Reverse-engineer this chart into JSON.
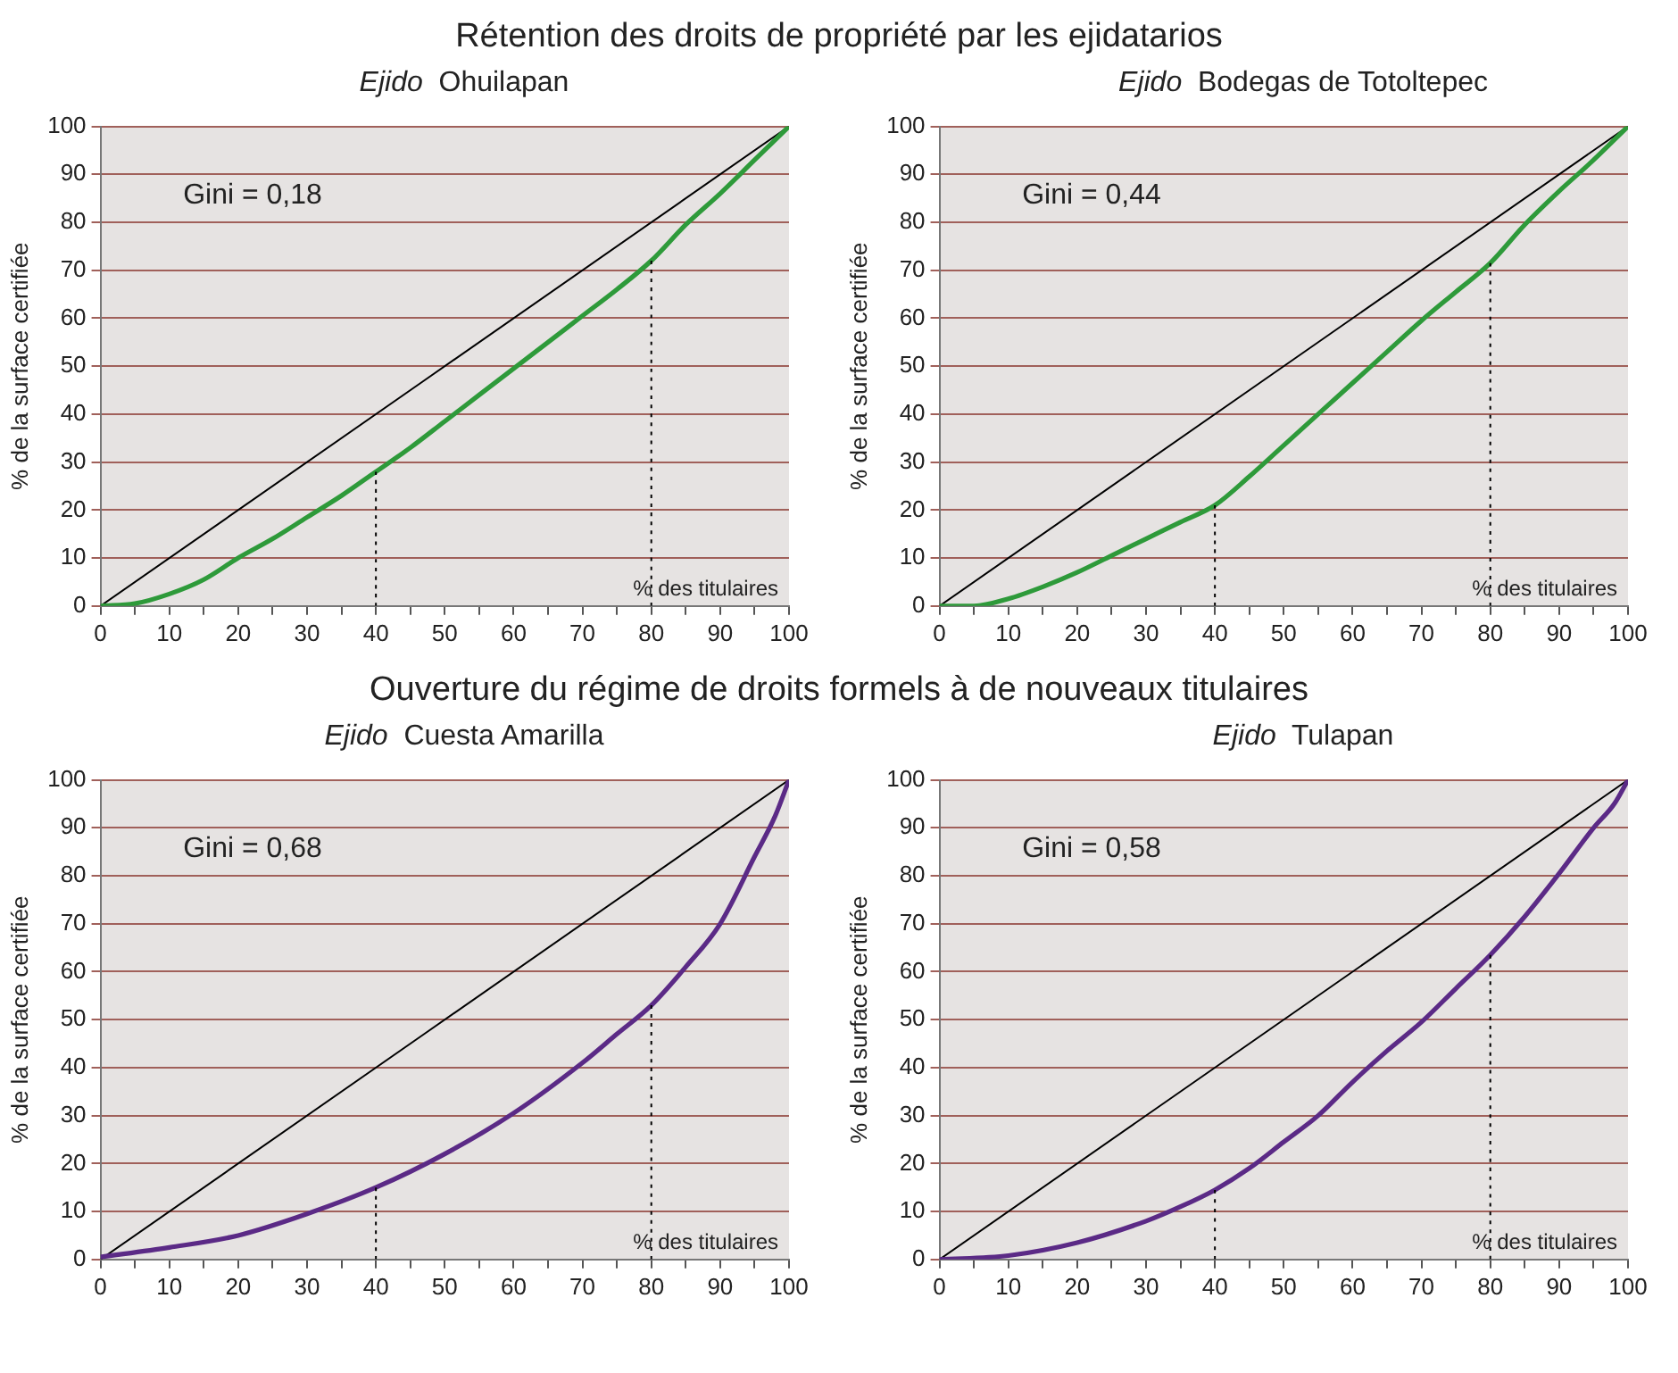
{
  "chart_data": [
    {
      "type": "line",
      "title": "Rétention des droits de propriété par les ejidatarios",
      "subtitle": "Ejido Ohuilapan",
      "xlabel": "% des titulaires",
      "ylabel": "% de la surface certifiée",
      "annotations": [
        "Gini = 0,18"
      ],
      "xlim": [
        0,
        100
      ],
      "ylim": [
        0,
        100
      ],
      "xticks": [
        0,
        {
          "value": 5,
          "label": null
        },
        10,
        {
          "value": 15,
          "label": null
        },
        20,
        {
          "value": 25,
          "label": null
        },
        30,
        {
          "value": 35,
          "label": null
        },
        40,
        {
          "value": 45,
          "label": null
        },
        50,
        {
          "value": 55,
          "label": null
        },
        60,
        {
          "value": 65,
          "label": null
        },
        70,
        {
          "value": 75,
          "label": null
        },
        80,
        {
          "value": 85,
          "label": null
        },
        90,
        {
          "value": 95,
          "label": null
        },
        100
      ],
      "yticks": [
        0,
        10,
        20,
        30,
        40,
        50,
        60,
        70,
        80,
        90,
        100
      ],
      "grid": "y",
      "marker": "none",
      "series": [
        {
          "color": "#000000",
          "x": [
            0,
            100
          ],
          "values": [
            0,
            100
          ]
        },
        {
          "color": "#2e9a3a",
          "x": [
            0,
            5,
            10,
            15,
            20,
            25,
            30,
            35,
            40,
            45,
            50,
            55,
            60,
            65,
            70,
            75,
            80,
            85,
            90,
            95,
            100
          ],
          "values": [
            0,
            0.5,
            2.5,
            5.5,
            10,
            14,
            18.5,
            23,
            28,
            33,
            38.5,
            44,
            49.5,
            55,
            60.5,
            66,
            72,
            79.5,
            86,
            93,
            100
          ]
        },
        {
          "color": "#000000",
          "line_style": "dotted",
          "x": [
            40,
            40
          ],
          "values": [
            0,
            28
          ]
        },
        {
          "color": "#000000",
          "line_style": "dotted",
          "x": [
            80,
            80
          ],
          "values": [
            0,
            72
          ]
        }
      ]
    },
    {
      "type": "line",
      "subtitle": "Ejido Bodegas de Totoltepec",
      "xlabel": "% des titulaires",
      "ylabel": "% de la surface certifiée",
      "annotations": [
        "Gini = 0,44"
      ],
      "xlim": [
        0,
        100
      ],
      "ylim": [
        0,
        100
      ],
      "xticks": [
        0,
        {
          "value": 5,
          "label": null
        },
        10,
        {
          "value": 15,
          "label": null
        },
        20,
        {
          "value": 25,
          "label": null
        },
        30,
        {
          "value": 35,
          "label": null
        },
        40,
        {
          "value": 45,
          "label": null
        },
        50,
        {
          "value": 55,
          "label": null
        },
        60,
        {
          "value": 65,
          "label": null
        },
        70,
        {
          "value": 75,
          "label": null
        },
        80,
        {
          "value": 85,
          "label": null
        },
        90,
        {
          "value": 95,
          "label": null
        },
        100
      ],
      "yticks": [
        0,
        10,
        20,
        30,
        40,
        50,
        60,
        70,
        80,
        90,
        100
      ],
      "grid": "y",
      "marker": "none",
      "series": [
        {
          "color": "#000000",
          "x": [
            0,
            100
          ],
          "values": [
            0,
            100
          ]
        },
        {
          "color": "#2e9a3a",
          "x": [
            0,
            5,
            10,
            15,
            20,
            25,
            30,
            35,
            40,
            45,
            50,
            55,
            60,
            65,
            70,
            75,
            80,
            85,
            90,
            95,
            100
          ],
          "values": [
            0,
            0,
            1.5,
            4,
            7,
            10.5,
            14,
            17.5,
            21,
            27,
            33.5,
            40,
            46.5,
            53,
            59.5,
            65.5,
            71.5,
            79.5,
            86.5,
            93,
            100
          ]
        },
        {
          "color": "#000000",
          "line_style": "dotted",
          "x": [
            40,
            40
          ],
          "values": [
            0,
            21
          ]
        },
        {
          "color": "#000000",
          "line_style": "dotted",
          "x": [
            80,
            80
          ],
          "values": [
            0,
            71.5
          ]
        }
      ]
    },
    {
      "type": "line",
      "title": "Ouverture du régime de droits formels à de nouveaux titulaires",
      "subtitle": "Ejido Cuesta Amarilla",
      "xlabel": "% des titulaires",
      "ylabel": "% de la surface certifiée",
      "annotations": [
        "Gini = 0,68"
      ],
      "xlim": [
        0,
        100
      ],
      "ylim": [
        0,
        100
      ],
      "xticks": [
        0,
        {
          "value": 5,
          "label": null
        },
        10,
        {
          "value": 15,
          "label": null
        },
        20,
        {
          "value": 25,
          "label": null
        },
        30,
        {
          "value": 35,
          "label": null
        },
        40,
        {
          "value": 45,
          "label": null
        },
        50,
        {
          "value": 55,
          "label": null
        },
        60,
        {
          "value": 65,
          "label": null
        },
        70,
        {
          "value": 75,
          "label": null
        },
        80,
        {
          "value": 85,
          "label": null
        },
        90,
        {
          "value": 95,
          "label": null
        },
        100
      ],
      "yticks": [
        0,
        10,
        20,
        30,
        40,
        50,
        60,
        70,
        80,
        90,
        100
      ],
      "grid": "y",
      "marker": "none",
      "series": [
        {
          "color": "#000000",
          "x": [
            0,
            100
          ],
          "values": [
            0,
            100
          ]
        },
        {
          "color": "#5b2a86",
          "x": [
            0,
            10,
            20,
            30,
            40,
            50,
            60,
            70,
            75,
            80,
            85,
            90,
            95,
            98,
            100
          ],
          "values": [
            0.5,
            2.5,
            5,
            9.5,
            15,
            22,
            30.5,
            41,
            47,
            53,
            61,
            70,
            84,
            92.5,
            100
          ]
        },
        {
          "color": "#000000",
          "line_style": "dotted",
          "x": [
            40,
            40
          ],
          "values": [
            0,
            15
          ]
        },
        {
          "color": "#000000",
          "line_style": "dotted",
          "x": [
            80,
            80
          ],
          "values": [
            0,
            53
          ]
        }
      ]
    },
    {
      "type": "line",
      "subtitle": "Ejido Tulapan",
      "xlabel": "% des titulaires",
      "ylabel": "% de la surface certifiée",
      "annotations": [
        "Gini = 0,58"
      ],
      "xlim": [
        0,
        100
      ],
      "ylim": [
        0,
        100
      ],
      "xticks": [
        0,
        {
          "value": 5,
          "label": null
        },
        10,
        {
          "value": 15,
          "label": null
        },
        20,
        {
          "value": 25,
          "label": null
        },
        30,
        {
          "value": 35,
          "label": null
        },
        40,
        {
          "value": 45,
          "label": null
        },
        50,
        {
          "value": 55,
          "label": null
        },
        60,
        {
          "value": 65,
          "label": null
        },
        70,
        {
          "value": 75,
          "label": null
        },
        80,
        {
          "value": 85,
          "label": null
        },
        90,
        {
          "value": 95,
          "label": null
        },
        100
      ],
      "yticks": [
        0,
        10,
        20,
        30,
        40,
        50,
        60,
        70,
        80,
        90,
        100
      ],
      "grid": "y",
      "marker": "none",
      "series": [
        {
          "color": "#000000",
          "x": [
            0,
            100
          ],
          "values": [
            0,
            100
          ]
        },
        {
          "color": "#5b2a86",
          "x": [
            0,
            10,
            20,
            30,
            35,
            40,
            45,
            50,
            55,
            60,
            65,
            70,
            75,
            80,
            85,
            90,
            95,
            98,
            100
          ],
          "values": [
            0,
            0.8,
            3.5,
            8,
            11,
            14.5,
            19,
            24.5,
            30,
            37,
            43.5,
            49.5,
            56.5,
            63.5,
            71.5,
            80.5,
            90,
            95,
            100
          ]
        },
        {
          "color": "#000000",
          "line_style": "dotted",
          "x": [
            40,
            40
          ],
          "values": [
            0,
            14.5
          ]
        },
        {
          "color": "#000000",
          "line_style": "dotted",
          "x": [
            80,
            80
          ],
          "values": [
            0,
            63.5
          ]
        }
      ]
    }
  ]
}
